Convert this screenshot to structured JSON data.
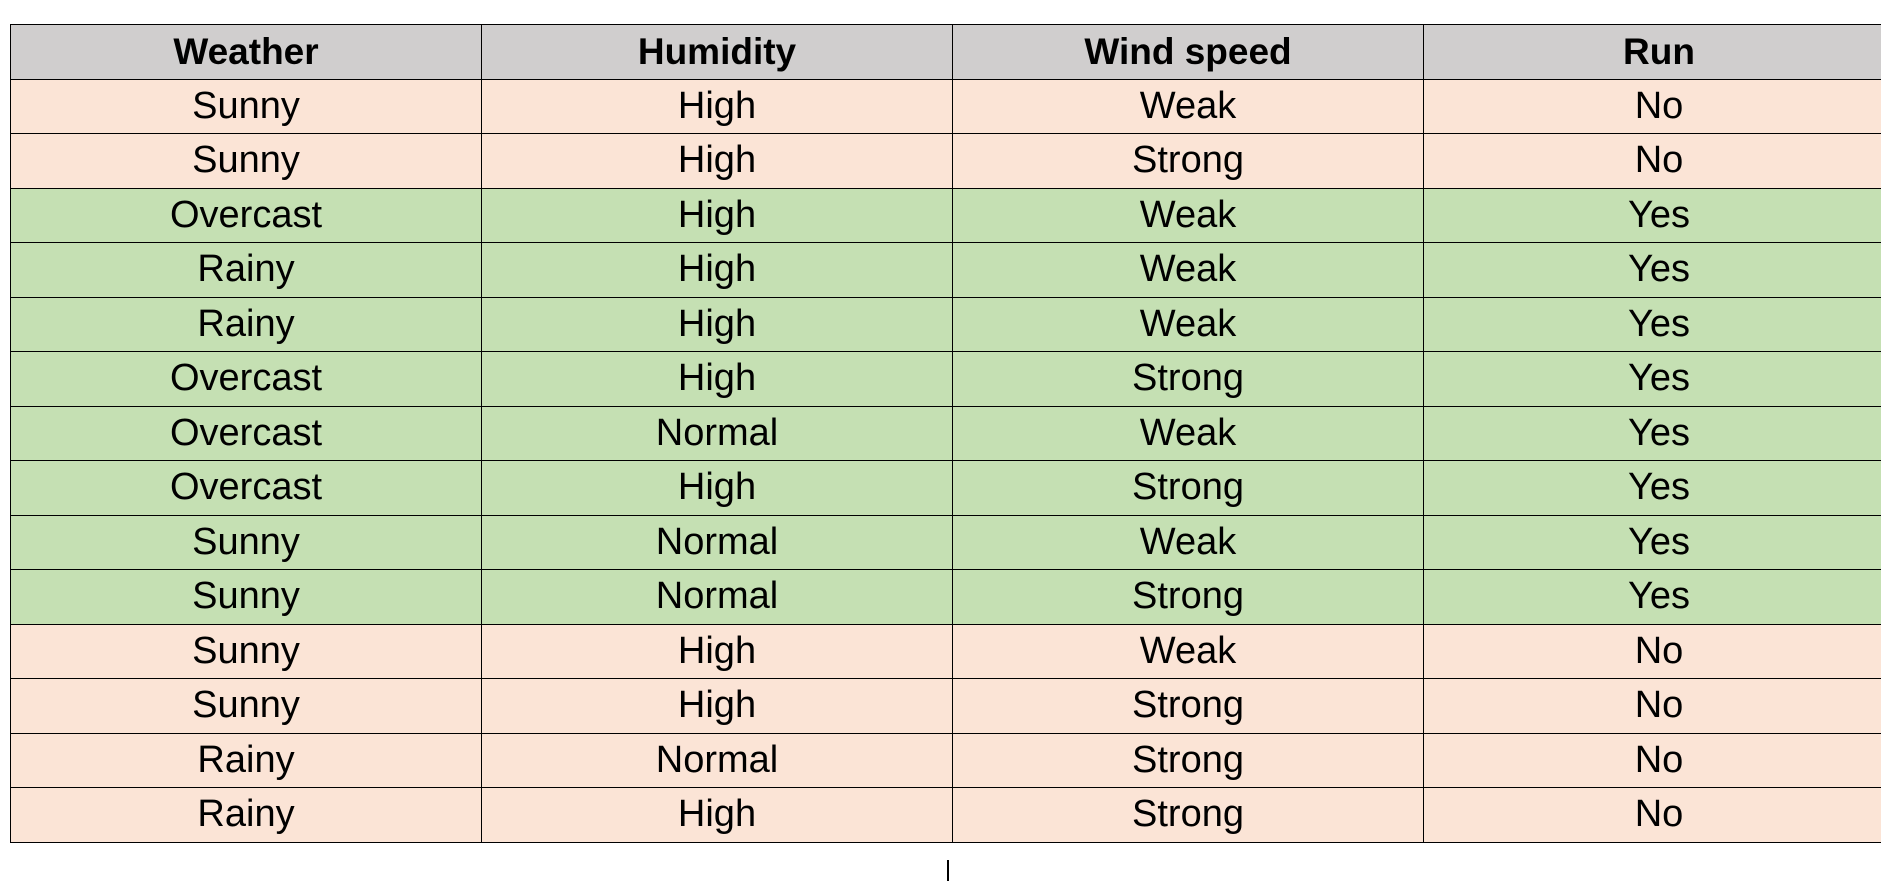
{
  "table": {
    "headers": [
      "Weather",
      "Humidity",
      "Wind speed",
      "Run"
    ],
    "rows": [
      {
        "label": "no",
        "cells": [
          "Sunny",
          "High",
          "Weak",
          "No"
        ]
      },
      {
        "label": "no",
        "cells": [
          "Sunny",
          "High",
          "Strong",
          "No"
        ]
      },
      {
        "label": "yes",
        "cells": [
          "Overcast",
          "High",
          "Weak",
          "Yes"
        ]
      },
      {
        "label": "yes",
        "cells": [
          "Rainy",
          "High",
          "Weak",
          "Yes"
        ]
      },
      {
        "label": "yes",
        "cells": [
          "Rainy",
          "High",
          "Weak",
          "Yes"
        ]
      },
      {
        "label": "yes",
        "cells": [
          "Overcast",
          "High",
          "Strong",
          "Yes"
        ]
      },
      {
        "label": "yes",
        "cells": [
          "Overcast",
          "Normal",
          "Weak",
          "Yes"
        ]
      },
      {
        "label": "yes",
        "cells": [
          "Overcast",
          "High",
          "Strong",
          "Yes"
        ]
      },
      {
        "label": "yes",
        "cells": [
          "Sunny",
          "Normal",
          "Weak",
          "Yes"
        ]
      },
      {
        "label": "yes",
        "cells": [
          "Sunny",
          "Normal",
          "Strong",
          "Yes"
        ]
      },
      {
        "label": "no",
        "cells": [
          "Sunny",
          "High",
          "Weak",
          "No"
        ]
      },
      {
        "label": "no",
        "cells": [
          "Sunny",
          "High",
          "Strong",
          "No"
        ]
      },
      {
        "label": "no",
        "cells": [
          "Rainy",
          "Normal",
          "Strong",
          "No"
        ]
      },
      {
        "label": "no",
        "cells": [
          "Rainy",
          "High",
          "Strong",
          "No"
        ]
      }
    ]
  },
  "colors": {
    "header_bg": "#d0cece",
    "row_no_bg": "#fbe4d6",
    "row_yes_bg": "#c5e0b3",
    "border": "#000000"
  }
}
